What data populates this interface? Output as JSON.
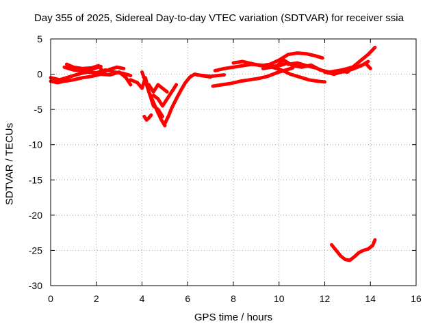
{
  "chart_data": {
    "type": "scatter",
    "title": "Day 355 of 2025, Sidereal Day-to-day VTEC variation (SDTVAR) for receiver ssia",
    "xlabel": "GPS time / hours",
    "ylabel": "SDTVAR / TECUs",
    "xlim": [
      0,
      16
    ],
    "ylim": [
      -30,
      5
    ],
    "xticks": [
      0,
      2,
      4,
      6,
      8,
      10,
      12,
      14,
      16
    ],
    "yticks": [
      5,
      0,
      -5,
      -10,
      -15,
      -20,
      -25,
      -30
    ],
    "grid": true,
    "legend": "none",
    "color": "#ff0000",
    "series": [
      {
        "x": [
          0.0,
          0.3,
          0.6,
          1.0,
          1.4,
          1.8,
          2.2,
          2.6,
          3.0,
          3.3,
          3.5
        ],
        "y": [
          -1.0,
          -1.2,
          -1.0,
          -0.8,
          -0.5,
          -0.3,
          0.0,
          -0.1,
          0.3,
          -0.5,
          -1.5
        ]
      },
      {
        "x": [
          0.0,
          0.4,
          0.8,
          1.2,
          1.6,
          2.0,
          2.4,
          2.8,
          3.2,
          3.5
        ],
        "y": [
          -0.5,
          -0.8,
          -0.4,
          0.0,
          0.3,
          0.2,
          0.6,
          0.3,
          0.1,
          -0.2
        ]
      },
      {
        "x": [
          0.7,
          1.0,
          1.4,
          1.8,
          2.1,
          2.3,
          2.6,
          2.9,
          3.2
        ],
        "y": [
          1.4,
          1.0,
          0.8,
          0.9,
          1.2,
          0.3,
          0.7,
          1.0,
          0.8
        ]
      },
      {
        "x": [
          0.6,
          1.0,
          1.4,
          1.8,
          2.2
        ],
        "y": [
          1.0,
          0.6,
          0.5,
          0.7,
          1.1
        ]
      },
      {
        "x": [
          3.5,
          3.8,
          4.0,
          4.15,
          4.3,
          4.5,
          4.7,
          4.85,
          5.0
        ],
        "y": [
          -0.8,
          -1.2,
          -2.0,
          -0.5,
          -2.5,
          -4.0,
          -5.5,
          -6.5,
          -7.3
        ]
      },
      {
        "x": [
          4.0,
          4.2,
          4.35,
          4.5,
          4.7,
          4.9
        ],
        "y": [
          0.3,
          -1.5,
          -3.0,
          -4.5,
          -5.0,
          -6.0
        ]
      },
      {
        "x": [
          4.1,
          4.2,
          4.3,
          4.4
        ],
        "y": [
          -6.0,
          -6.5,
          -6.2,
          -5.8
        ]
      },
      {
        "x": [
          4.3,
          4.5,
          4.7,
          4.9,
          5.1
        ],
        "y": [
          -1.5,
          -2.5,
          -1.5,
          -2.0,
          -2.5
        ]
      },
      {
        "x": [
          5.0,
          5.15,
          5.3,
          5.5,
          5.7,
          5.9,
          6.1,
          6.3,
          6.6,
          7.0
        ],
        "y": [
          -7.0,
          -6.0,
          -4.8,
          -3.5,
          -2.3,
          -1.2,
          -0.4,
          0.0,
          -0.2,
          -0.4
        ]
      },
      {
        "x": [
          4.5,
          4.7,
          4.9,
          5.1,
          5.3,
          5.5
        ],
        "y": [
          -3.0,
          -3.5,
          -4.5,
          -3.5,
          -2.5,
          -1.5
        ]
      },
      {
        "x": [
          6.4,
          6.7,
          7.0,
          7.3,
          7.6
        ],
        "y": [
          -0.1,
          -0.2,
          -0.3,
          -0.2,
          -0.1
        ]
      },
      {
        "x": [
          7.2,
          7.6,
          8.0,
          8.4,
          8.8,
          9.2,
          9.6,
          10.0,
          10.4
        ],
        "y": [
          0.5,
          0.8,
          1.0,
          1.2,
          1.4,
          1.3,
          1.1,
          1.2,
          1.6
        ]
      },
      {
        "x": [
          8.0,
          8.4,
          8.8,
          9.2,
          9.6,
          10.0,
          10.4,
          10.8,
          11.2,
          11.6,
          11.9
        ],
        "y": [
          1.6,
          1.8,
          1.5,
          1.2,
          1.4,
          2.0,
          2.8,
          3.0,
          2.9,
          2.6,
          2.3
        ]
      },
      {
        "x": [
          7.1,
          7.5,
          7.9,
          8.3,
          8.7,
          9.1,
          9.5,
          9.9,
          10.3,
          10.6
        ],
        "y": [
          -1.7,
          -1.5,
          -1.3,
          -1.0,
          -0.8,
          -0.6,
          -0.3,
          0.2,
          0.6,
          0.9
        ]
      },
      {
        "x": [
          9.3,
          9.7,
          10.1,
          10.5,
          10.9,
          11.3,
          11.7,
          12.0
        ],
        "y": [
          0.8,
          1.0,
          0.6,
          0.0,
          -0.4,
          -0.8,
          -1.0,
          -1.1
        ]
      },
      {
        "x": [
          9.8,
          10.2,
          10.6,
          11.0,
          11.4,
          11.8,
          12.2,
          12.6,
          13.0,
          13.3
        ],
        "y": [
          0.9,
          2.0,
          1.2,
          1.0,
          1.3,
          0.6,
          0.3,
          0.5,
          0.8,
          1.1
        ]
      },
      {
        "x": [
          10.4,
          10.8,
          11.2,
          11.6,
          12.0,
          12.4,
          12.7,
          13.0,
          13.3,
          13.6,
          13.9,
          14.2
        ],
        "y": [
          1.4,
          1.6,
          1.2,
          0.9,
          0.4,
          0.2,
          0.4,
          0.3,
          1.2,
          2.0,
          2.8,
          3.8
        ]
      },
      {
        "x": [
          12.0,
          12.4,
          12.8,
          13.2,
          13.6,
          13.9
        ],
        "y": [
          0.3,
          0.0,
          0.4,
          0.7,
          1.2,
          1.8
        ]
      },
      {
        "x": [
          12.3,
          12.6,
          13.0,
          13.4,
          13.8,
          14.0
        ],
        "y": [
          0.3,
          0.2,
          0.5,
          1.0,
          1.5,
          0.8
        ]
      },
      {
        "x": [
          12.3,
          12.5,
          12.7,
          12.9,
          13.1,
          13.3,
          13.5,
          13.7,
          13.9,
          14.1,
          14.2
        ],
        "y": [
          -24.2,
          -25.0,
          -25.8,
          -26.3,
          -26.4,
          -25.9,
          -25.3,
          -25.0,
          -24.8,
          -24.3,
          -23.5
        ]
      }
    ]
  }
}
